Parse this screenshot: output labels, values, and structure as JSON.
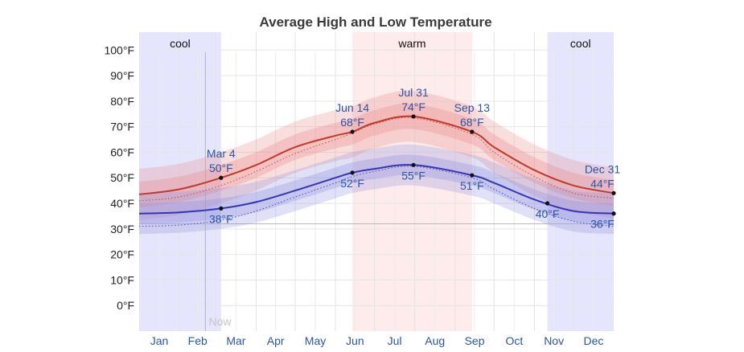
{
  "chart_data": {
    "type": "line",
    "title": "Average High and Low Temperature",
    "ylim": [
      -10,
      107
    ],
    "yticks": [
      0,
      10,
      20,
      30,
      40,
      50,
      60,
      70,
      80,
      90,
      100
    ],
    "ytick_labels": [
      "0°F",
      "10°F",
      "20°F",
      "30°F",
      "40°F",
      "50°F",
      "60°F",
      "70°F",
      "80°F",
      "90°F",
      "100°F"
    ],
    "x_range_days": [
      0,
      365
    ],
    "month_labels": [
      "Jan",
      "Feb",
      "Mar",
      "Apr",
      "May",
      "Jun",
      "Jul",
      "Aug",
      "Sep",
      "Oct",
      "Nov",
      "Dec"
    ],
    "month_start_days": [
      0,
      31,
      59,
      90,
      120,
      151,
      181,
      212,
      243,
      273,
      304,
      334
    ],
    "grid": true,
    "seasons": [
      {
        "label": "cool",
        "start_day": 0,
        "end_day": 63,
        "color": "#dcdcfc"
      },
      {
        "label": "warm",
        "start_day": 164,
        "end_day": 256,
        "color": "#fde4e4"
      },
      {
        "label": "cool",
        "start_day": 314,
        "end_day": 365,
        "color": "#dcdcfc"
      }
    ],
    "now": {
      "label": "Now",
      "day": 51
    },
    "reference_line_value": 32,
    "series": [
      {
        "key": "high",
        "color": "#c0392b",
        "band_color": "#e8898a",
        "days": [
          0,
          31,
          63,
          90,
          120,
          151,
          164,
          181,
          211,
          256,
          273,
          304,
          334,
          365
        ],
        "values": [
          43.5,
          45.5,
          50,
          55,
          62,
          66.5,
          68,
          71.5,
          74,
          68,
          62,
          53,
          47,
          44
        ],
        "inner_band": [
          [
            38.5,
            48.5
          ],
          [
            40.5,
            50.5
          ],
          [
            45,
            55
          ],
          [
            50,
            60
          ],
          [
            57,
            67
          ],
          [
            61.5,
            71.5
          ],
          [
            63,
            73
          ],
          [
            66.5,
            76.5
          ],
          [
            69,
            79
          ],
          [
            63,
            73
          ],
          [
            57,
            67
          ],
          [
            48,
            58
          ],
          [
            42,
            52
          ],
          [
            39,
            49
          ]
        ],
        "outer_band": [
          [
            33.5,
            53.5
          ],
          [
            35.5,
            55.5
          ],
          [
            40,
            60
          ],
          [
            45,
            65
          ],
          [
            52,
            72
          ],
          [
            56.5,
            76.5
          ],
          [
            58,
            78
          ],
          [
            61.5,
            81.5
          ],
          [
            64,
            84
          ],
          [
            58,
            78
          ],
          [
            52,
            72
          ],
          [
            43,
            63
          ],
          [
            37,
            57
          ],
          [
            34,
            54
          ]
        ],
        "dotted_values": [
          41,
          42.5,
          47,
          52.5,
          59.5,
          65,
          67.5,
          71,
          73.5,
          67,
          60,
          50.5,
          44,
          42
        ]
      },
      {
        "key": "low",
        "color": "#3535b5",
        "band_color": "#8f8fe0",
        "days": [
          0,
          31,
          63,
          90,
          120,
          151,
          164,
          181,
          211,
          256,
          273,
          304,
          334,
          365
        ],
        "values": [
          36,
          36.5,
          38,
          40.5,
          45,
          50,
          52,
          53.5,
          55,
          51,
          48,
          41.5,
          37,
          36
        ],
        "inner_band": [
          [
            32,
            40
          ],
          [
            32.5,
            40.5
          ],
          [
            34,
            42
          ],
          [
            36.5,
            44.5
          ],
          [
            41,
            49
          ],
          [
            46,
            54
          ],
          [
            48,
            56
          ],
          [
            49.5,
            57.5
          ],
          [
            51,
            59
          ],
          [
            47,
            55
          ],
          [
            44,
            52
          ],
          [
            37.5,
            45.5
          ],
          [
            33,
            41
          ],
          [
            32,
            40
          ]
        ],
        "outer_band": [
          [
            28,
            44
          ],
          [
            28.5,
            44.5
          ],
          [
            30,
            46
          ],
          [
            32.5,
            48.5
          ],
          [
            37,
            53
          ],
          [
            42,
            58
          ],
          [
            44,
            60
          ],
          [
            45.5,
            61.5
          ],
          [
            47,
            63
          ],
          [
            43,
            59
          ],
          [
            40,
            56
          ],
          [
            33.5,
            49.5
          ],
          [
            29,
            45
          ],
          [
            28,
            44
          ]
        ],
        "dotted_values": [
          31,
          31.5,
          33.5,
          37,
          42.5,
          48,
          50.5,
          52.5,
          54.5,
          50,
          45.5,
          38,
          33,
          31
        ]
      }
    ],
    "annotations": [
      {
        "series": "high",
        "day": 63,
        "value": 50,
        "lines": [
          "Mar 4",
          "50°F"
        ],
        "position": "above"
      },
      {
        "series": "high",
        "day": 164,
        "value": 68,
        "lines": [
          "Jun 14",
          "68°F"
        ],
        "position": "above"
      },
      {
        "series": "high",
        "day": 211,
        "value": 74,
        "lines": [
          "Jul 31",
          "74°F"
        ],
        "position": "above"
      },
      {
        "series": "high",
        "day": 256,
        "value": 68,
        "lines": [
          "Sep 13",
          "68°F"
        ],
        "position": "above"
      },
      {
        "series": "high",
        "day": 365,
        "value": 44,
        "lines": [
          "Dec 31",
          "44°F"
        ],
        "position": "above-left"
      },
      {
        "series": "low",
        "day": 63,
        "value": 38,
        "lines": [
          "38°F"
        ],
        "position": "below"
      },
      {
        "series": "low",
        "day": 164,
        "value": 52,
        "lines": [
          "52°F"
        ],
        "position": "below"
      },
      {
        "series": "low",
        "day": 211,
        "value": 55,
        "lines": [
          "55°F"
        ],
        "position": "below"
      },
      {
        "series": "low",
        "day": 256,
        "value": 51,
        "lines": [
          "51°F"
        ],
        "position": "below"
      },
      {
        "series": "low",
        "day": 314,
        "value": 40,
        "lines": [
          "40°F"
        ],
        "position": "below"
      },
      {
        "series": "low",
        "day": 365,
        "value": 36,
        "lines": [
          "36°F"
        ],
        "position": "below-left"
      }
    ]
  }
}
